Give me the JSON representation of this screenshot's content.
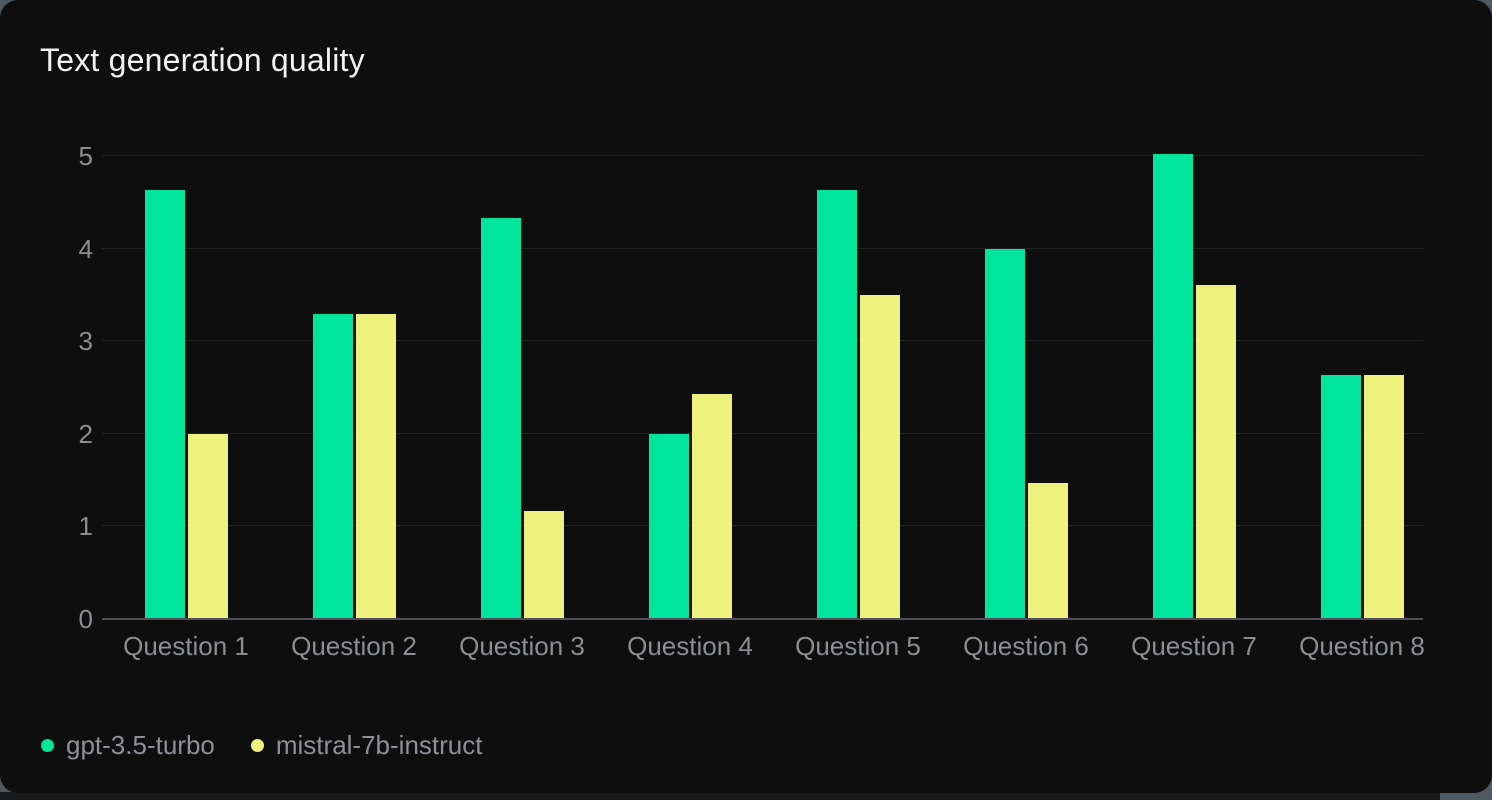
{
  "page": {
    "background_color": "#4e5a63",
    "card_color": "#0d0e0d",
    "bottom_strip_color": "#17191a"
  },
  "header": {
    "title": "Text generation quality"
  },
  "chart_data": {
    "type": "bar",
    "title": "Text generation quality",
    "categories": [
      "Question 1",
      "Question 2",
      "Question 3",
      "Question 4",
      "Question 5",
      "Question 6",
      "Question 7",
      "Question 8"
    ],
    "series": [
      {
        "name": "gpt-3.5-turbo",
        "color": "#00e49c",
        "values": [
          4.63,
          3.29,
          4.33,
          2.0,
          4.63,
          4.0,
          5.02,
          2.63
        ]
      },
      {
        "name": "mistral-7b-instruct",
        "color": "#eef17c",
        "values": [
          2.0,
          3.29,
          1.17,
          2.43,
          3.5,
          1.47,
          3.61,
          2.63
        ]
      }
    ],
    "xlabel": "",
    "ylabel": "",
    "ylim": [
      0,
      5
    ],
    "yticks": [
      0,
      1,
      2,
      3,
      4,
      5
    ],
    "grid": true,
    "grid_color": "#222423",
    "axis_line_color": "#505156",
    "tick_label_color": "#8c8d93",
    "legend_position": "bottom-left"
  }
}
